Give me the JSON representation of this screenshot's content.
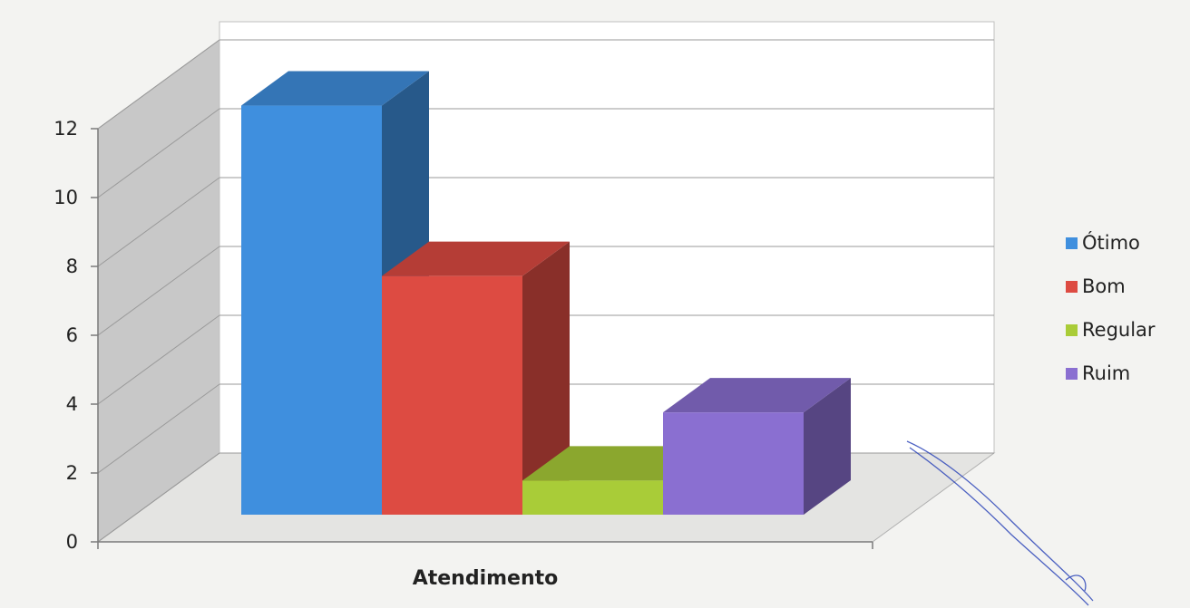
{
  "chart_data": {
    "type": "bar",
    "style": "3d-clustered-column",
    "categories": [
      "Atendimento"
    ],
    "series": [
      {
        "name": "Ótimo",
        "values": [
          12
        ],
        "color": "#3f8fde"
      },
      {
        "name": "Bom",
        "values": [
          7
        ],
        "color": "#dd4b42"
      },
      {
        "name": "Regular",
        "values": [
          1
        ],
        "color": "#a9cc38"
      },
      {
        "name": "Ruim",
        "values": [
          3
        ],
        "color": "#8a6fd1"
      }
    ],
    "title": "",
    "xlabel": "",
    "ylabel": "",
    "ylim": [
      0,
      12
    ],
    "yticks": [
      "0",
      "2",
      "4",
      "6",
      "8",
      "10",
      "12"
    ],
    "grid": true,
    "legend_position": "right",
    "background_color": "#f3f3f1",
    "wall_color": "#c8c8c8",
    "plot_color": "#ffffff"
  }
}
